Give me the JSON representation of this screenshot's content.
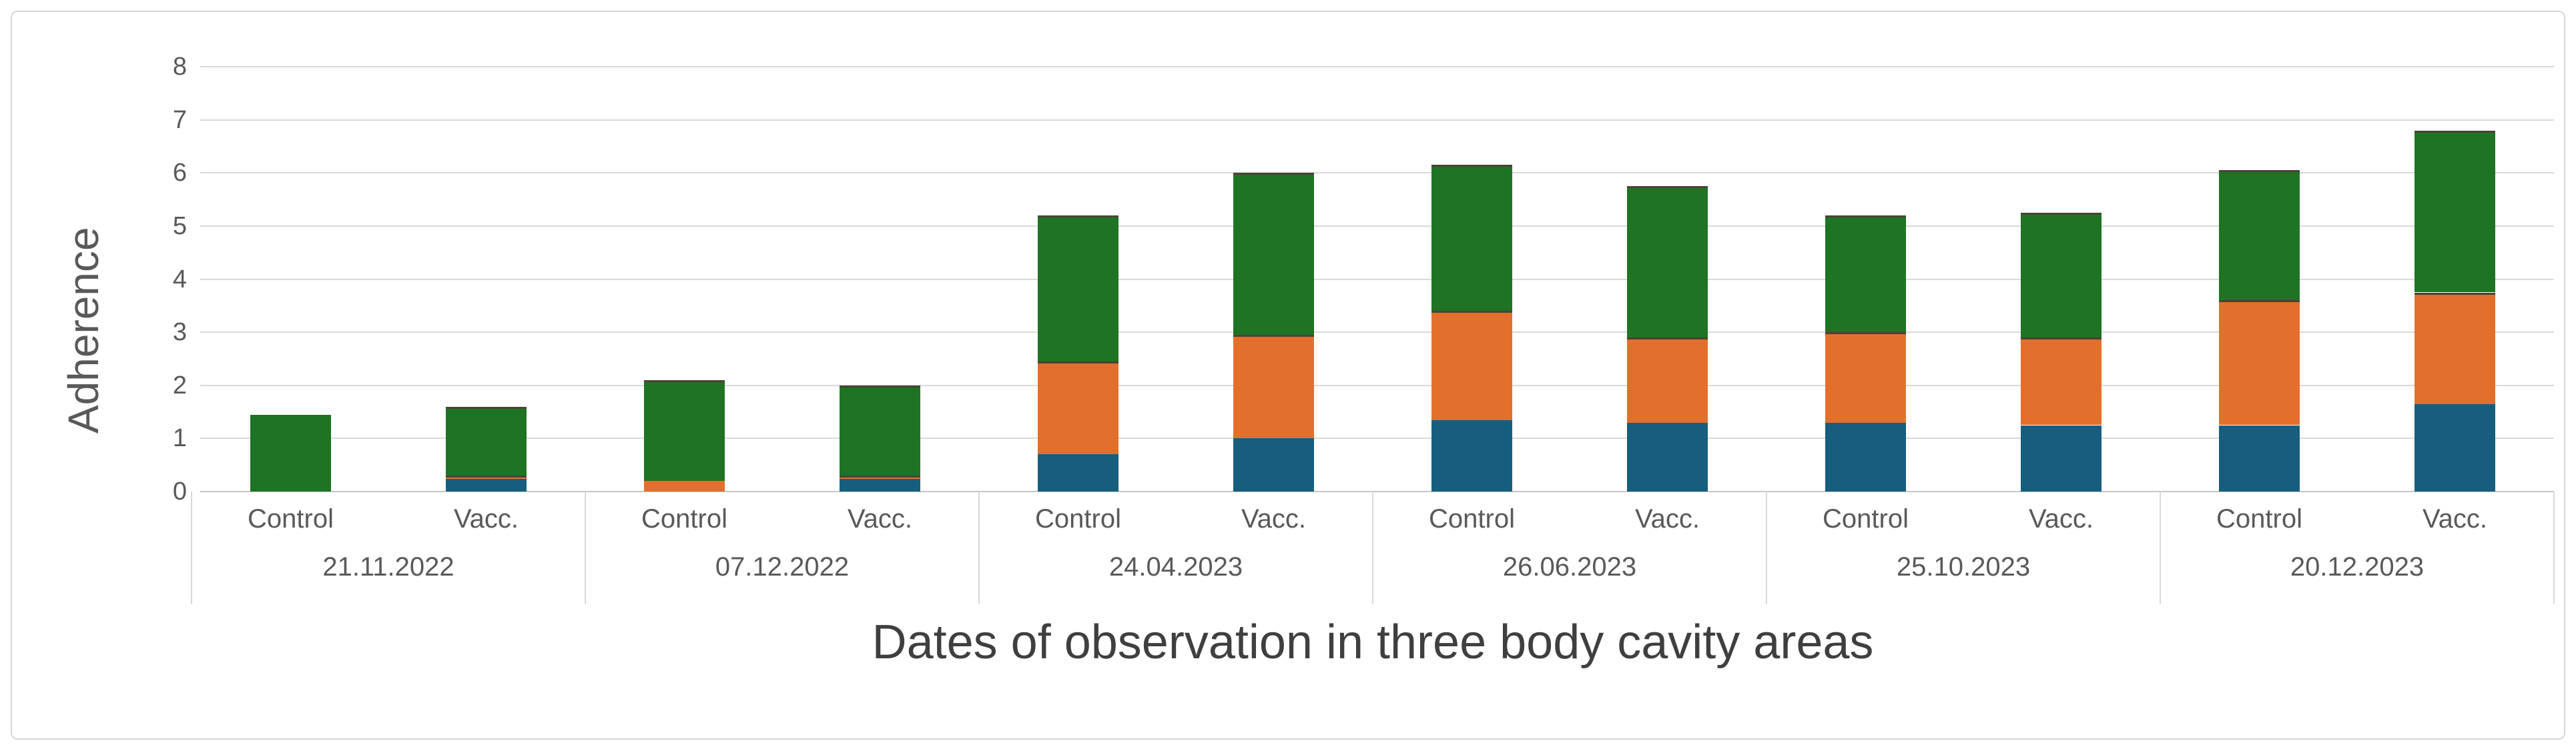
{
  "chart_data": {
    "type": "bar",
    "stacked": true,
    "title": "",
    "xlabel": "Dates of observation in three body cavity areas",
    "ylabel": "Adherence",
    "ylim": [
      0,
      8
    ],
    "yticks": [
      0,
      1,
      2,
      3,
      4,
      5,
      6,
      7,
      8
    ],
    "grid": true,
    "legend": "none",
    "subcategories": [
      "Control",
      "Vacc."
    ],
    "segment_order": [
      "blue",
      "orange",
      "green"
    ],
    "segment_colors": {
      "blue": "#175e7e",
      "orange": "#e2702c",
      "green": "#1e7424"
    },
    "groups": [
      {
        "date": "21.11.2022",
        "bars": [
          {
            "label": "Control",
            "blue": 0,
            "orange": 0,
            "green": 1.45,
            "total": 1.45
          },
          {
            "label": "Vacc.",
            "blue": 0.25,
            "orange": 0.05,
            "green": 1.3,
            "total": 1.6
          }
        ]
      },
      {
        "date": "07.12.2022",
        "bars": [
          {
            "label": "Control",
            "blue": 0,
            "orange": 0.2,
            "green": 1.9,
            "total": 2.1
          },
          {
            "label": "Vacc.",
            "blue": 0.25,
            "orange": 0.05,
            "green": 1.7,
            "total": 2.0
          }
        ]
      },
      {
        "date": "24.04.2023",
        "bars": [
          {
            "label": "Control",
            "blue": 0.7,
            "orange": 1.75,
            "green": 2.75,
            "total": 5.2
          },
          {
            "label": "Vacc.",
            "blue": 1.0,
            "orange": 1.95,
            "green": 3.05,
            "total": 6.0
          }
        ]
      },
      {
        "date": "26.06.2023",
        "bars": [
          {
            "label": "Control",
            "blue": 1.35,
            "orange": 2.05,
            "green": 2.75,
            "total": 6.15
          },
          {
            "label": "Vacc.",
            "blue": 1.3,
            "orange": 1.6,
            "green": 2.85,
            "total": 5.75
          }
        ]
      },
      {
        "date": "25.10.2023",
        "bars": [
          {
            "label": "Control",
            "blue": 1.3,
            "orange": 1.7,
            "green": 2.2,
            "total": 5.2
          },
          {
            "label": "Vacc.",
            "blue": 1.25,
            "orange": 1.65,
            "green": 2.35,
            "total": 5.25
          }
        ]
      },
      {
        "date": "20.12.2023",
        "bars": [
          {
            "label": "Control",
            "blue": 1.25,
            "orange": 2.35,
            "green": 2.45,
            "total": 6.05
          },
          {
            "label": "Vacc.",
            "blue": 1.65,
            "orange": 2.1,
            "green": 3.05,
            "total": 6.8
          }
        ]
      }
    ],
    "colors": {
      "gridline": "#d9d9d9",
      "axis_line": "#c6c6c6",
      "frame_border": "#d6d6d6",
      "tick_text": "#595959",
      "title_text": "#3f3f3f",
      "segment_divider": "#4a4336"
    }
  }
}
